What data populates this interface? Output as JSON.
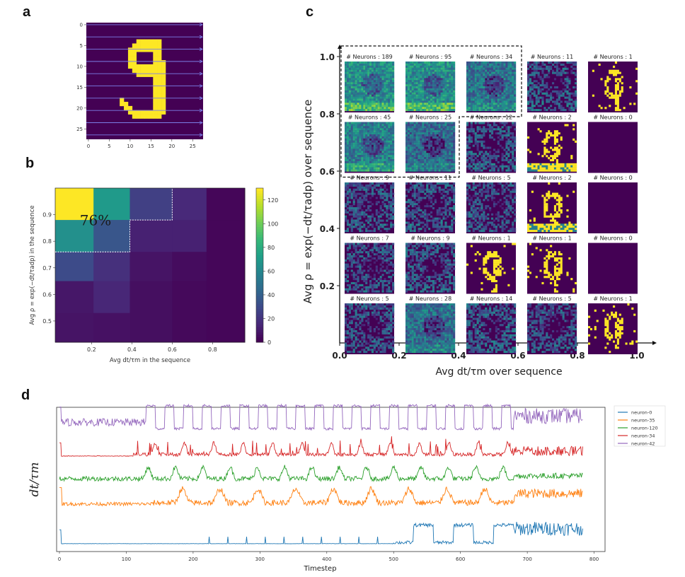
{
  "panels": {
    "a": {
      "letter": "a"
    },
    "b": {
      "letter": "b"
    },
    "c": {
      "letter": "c"
    },
    "d": {
      "letter": "d"
    }
  },
  "colors": {
    "viridis": [
      "#440154",
      "#482878",
      "#3e4989",
      "#31688e",
      "#26828e",
      "#1f9e89",
      "#35b779",
      "#6ece58",
      "#b5de2b",
      "#fde725"
    ],
    "neuron-0": "#1f77b4",
    "neuron-35": "#ff7f0e",
    "neuron-120": "#2ca02c",
    "neuron-34": "#d62728",
    "neuron-42": "#9467bd"
  },
  "chart_data": [
    {
      "id": "a",
      "type": "heatmap",
      "title": "",
      "description": "MNIST digit 9 (28x28) with row-wise scan arrows",
      "xticks": [
        "0",
        "5",
        "10",
        "15",
        "20",
        "25"
      ],
      "yticks": [
        "0",
        "5",
        "10",
        "15",
        "20",
        "25"
      ],
      "xlim": [
        0,
        27
      ],
      "ylim": [
        0,
        27
      ],
      "digit": "9",
      "arrow_rows": [
        0,
        3,
        6,
        9,
        12,
        15,
        18,
        21,
        24,
        27
      ]
    },
    {
      "id": "b",
      "type": "heatmap",
      "xlabel": "Avg dt/τm in the sequence",
      "ylabel": "Avg ρ = exp(−dt/τadp) in the sequence",
      "xticks": [
        "0.2",
        "0.4",
        "0.6",
        "0.8"
      ],
      "yticks": [
        "0.9",
        "0.8",
        "0.7",
        "0.6",
        "0.5"
      ],
      "x_bins": [
        0.1,
        0.3,
        0.5,
        0.7,
        0.9
      ],
      "y_bins": [
        0.95,
        0.85,
        0.75,
        0.65,
        0.5
      ],
      "values": [
        [
          130,
          70,
          25,
          15,
          2
        ],
        [
          65,
          35,
          12,
          12,
          2
        ],
        [
          30,
          18,
          7,
          4,
          2
        ],
        [
          8,
          14,
          5,
          3,
          2
        ],
        [
          7,
          6,
          5,
          3,
          2
        ]
      ],
      "colorbar": {
        "min": 0,
        "max": 130,
        "ticks": [
          "0",
          "20",
          "40",
          "60",
          "80",
          "100",
          "120"
        ]
      },
      "annotation": "76%",
      "highlight_region": "dashed white border around top-left high-density cells"
    },
    {
      "id": "c",
      "type": "heatmap",
      "xlabel": "Avg dt/τm over sequence",
      "ylabel": "Avg ρ = exp(−dt/τadp) over sequence",
      "xticks": [
        "0.0",
        "0.2",
        "0.4",
        "0.6",
        "0.8",
        "1.0"
      ],
      "yticks": [
        "1.0",
        "0.8",
        "0.6",
        "0.4",
        "0.2"
      ],
      "cell_label_prefix": "# Neurons : ",
      "neuron_counts": [
        [
          189,
          95,
          34,
          11,
          1
        ],
        [
          45,
          25,
          12,
          2,
          0
        ],
        [
          9,
          11,
          5,
          2,
          0
        ],
        [
          7,
          9,
          1,
          1,
          0
        ],
        [
          5,
          28,
          14,
          5,
          1
        ]
      ],
      "highlight_region": "dashed black border around top-left cluster"
    },
    {
      "id": "d",
      "type": "line",
      "xlabel": "Timestep",
      "ylabel": "dt/τm",
      "xlim": [
        0,
        800
      ],
      "xticks": [
        "0",
        "100",
        "200",
        "300",
        "400",
        "500",
        "600",
        "700",
        "800"
      ],
      "legend": "top-right (outside)",
      "series": [
        {
          "name": "neuron-0",
          "color": "#1f77b4",
          "pattern": "flat until ~500 then periodic plateaus, noisy after 680",
          "offset": 0
        },
        {
          "name": "neuron-35",
          "color": "#ff7f0e",
          "pattern": "low noise then periodic peaks from ~140",
          "offset": 1
        },
        {
          "name": "neuron-120",
          "color": "#2ca02c",
          "pattern": "periodic peaks throughout",
          "offset": 2
        },
        {
          "name": "neuron-34",
          "color": "#d62728",
          "pattern": "flat then spiky peaks from ~110",
          "offset": 3
        },
        {
          "name": "neuron-42",
          "color": "#9467bd",
          "pattern": "noisy then square-wave plateaus 130-680, noisy after",
          "offset": 4
        }
      ],
      "n_points": 784
    }
  ]
}
